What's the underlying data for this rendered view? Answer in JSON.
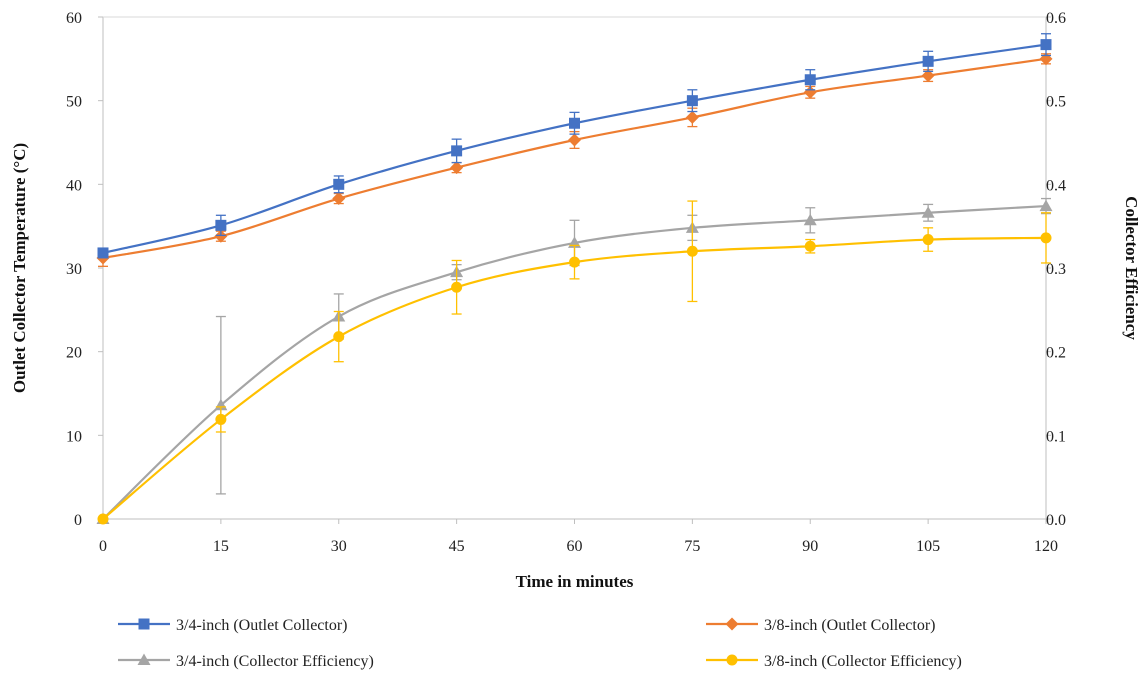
{
  "chart_data": {
    "type": "line",
    "xlabel": "Time in minutes",
    "ylabel_left": "Outlet Collector Temperature (°C)",
    "ylabel_right": "Collector Efficiency",
    "x_ticks": [
      "0",
      "15",
      "30",
      "45",
      "60",
      "75",
      "90",
      "105",
      "120"
    ],
    "y_left_ticks": [
      "0",
      "10",
      "20",
      "30",
      "40",
      "50",
      "60"
    ],
    "y_right_ticks": [
      "0.0",
      "0.1",
      "0.2",
      "0.3",
      "0.4",
      "0.5",
      "0.6"
    ],
    "xlim": [
      0,
      120
    ],
    "ylim_left": [
      0,
      60
    ],
    "ylim_right": [
      0,
      0.6
    ],
    "grid": false,
    "legend_position": "bottom",
    "x": [
      0,
      15,
      30,
      45,
      60,
      75,
      90,
      105,
      120
    ],
    "series": [
      {
        "name": "3/4-inch (Outlet Collector)",
        "axis": "left",
        "color": "#4472C4",
        "marker": "square",
        "values": [
          31.8,
          35.1,
          40.0,
          44.0,
          47.3,
          50.0,
          52.5,
          54.7,
          56.7
        ],
        "errors": [
          0.4,
          1.2,
          1.0,
          1.4,
          1.3,
          1.3,
          1.2,
          1.2,
          1.3
        ]
      },
      {
        "name": "3/8-inch (Outlet Collector)",
        "axis": "left",
        "color": "#ED7D31",
        "marker": "diamond",
        "values": [
          31.2,
          33.8,
          38.3,
          42.0,
          45.3,
          48.0,
          51.0,
          53.0,
          55.0
        ],
        "errors": [
          1.0,
          0.6,
          0.6,
          0.6,
          1.0,
          1.1,
          0.7,
          0.7,
          0.6
        ]
      },
      {
        "name": "3/4-inch (Collector Efficiency)",
        "axis": "right",
        "color": "#A5A5A5",
        "marker": "triangle",
        "values": [
          0.0,
          0.136,
          0.242,
          0.295,
          0.33,
          0.348,
          0.357,
          0.366,
          0.374
        ],
        "errors": [
          0.0,
          0.106,
          0.027,
          0.009,
          0.027,
          0.015,
          0.015,
          0.01,
          0.009
        ]
      },
      {
        "name": "3/8-inch (Collector Efficiency)",
        "axis": "right",
        "color": "#FFC000",
        "marker": "circle",
        "values": [
          0.0,
          0.119,
          0.218,
          0.277,
          0.307,
          0.32,
          0.326,
          0.334,
          0.336
        ],
        "errors": [
          0.0,
          0.015,
          0.03,
          0.032,
          0.02,
          0.06,
          0.008,
          0.014,
          0.03
        ]
      }
    ]
  }
}
